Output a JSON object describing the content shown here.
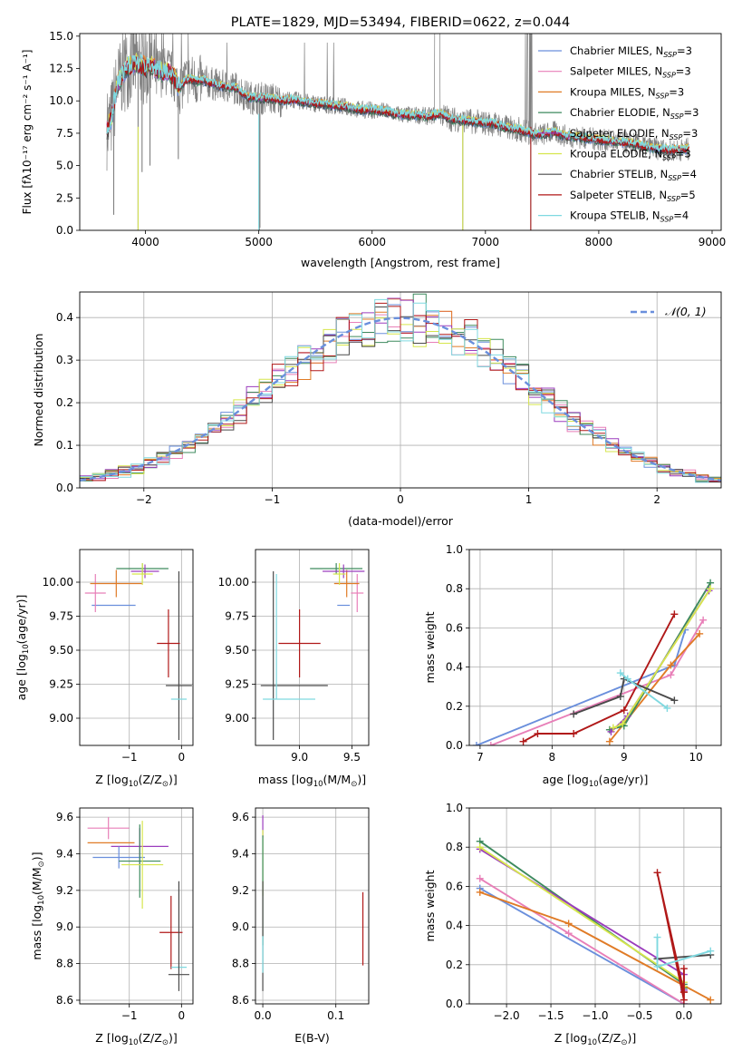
{
  "colors": {
    "chabrier_miles": "#6a8fdc",
    "salpeter_miles": "#e87fb8",
    "kroupa_miles": "#e07b26",
    "chabrier_elodie": "#3d8a5e",
    "salpeter_elodie": "#9b3dbd",
    "kroupa_elodie": "#d6e64c",
    "chabrier_stelib": "#4a4a4a",
    "salpeter_stelib": "#b01818",
    "kroupa_stelib": "#7fd9e0",
    "data": "#808080"
  },
  "chart_data": [
    {
      "id": "spectrum",
      "type": "line",
      "title": "PLATE=1829, MJD=53494, FIBERID=0622, z=0.044",
      "xlabel": "wavelength [Angstrom, rest frame]",
      "ylabel": "Flux [fλ10⁻¹⁷ erg cm⁻² s⁻¹ A⁻¹]",
      "xlim": [
        3420,
        9080
      ],
      "ylim": [
        0,
        15.2
      ],
      "xticks": [
        4000,
        5000,
        6000,
        7000,
        8000,
        9000
      ],
      "yticks": [
        0.0,
        2.5,
        5.0,
        7.5,
        10.0,
        12.5,
        15.0
      ],
      "ytick_labels": [
        "0.0",
        "2.5",
        "5.0",
        "7.5",
        "10.0",
        "12.5",
        "15.0"
      ],
      "legend_position": "upper-right",
      "legend": [
        {
          "prefix": "Chabrier MILES, N",
          "sub": "SSP",
          "suffix": "=3",
          "color": "#6a8fdc"
        },
        {
          "prefix": "Salpeter MILES, N",
          "sub": "SSP",
          "suffix": "=3",
          "color": "#e87fb8"
        },
        {
          "prefix": "Kroupa MILES, N",
          "sub": "SSP",
          "suffix": "=3",
          "color": "#e07b26"
        },
        {
          "prefix": "Chabrier ELODIE, N",
          "sub": "SSP",
          "suffix": "=3",
          "color": "#3d8a5e"
        },
        {
          "prefix": "Salpeter ELODIE, N",
          "sub": "SSP",
          "suffix": "=3",
          "color": "#9b3dbd"
        },
        {
          "prefix": "Kroupa ELODIE, N",
          "sub": "SSP",
          "suffix": "=3",
          "color": "#d6e64c"
        },
        {
          "prefix": "Chabrier STELIB, N",
          "sub": "SSP",
          "suffix": "=4",
          "color": "#4a4a4a"
        },
        {
          "prefix": "Salpeter STELIB, N",
          "sub": "SSP",
          "suffix": "=5",
          "color": "#b01818"
        },
        {
          "prefix": "Kroupa STELIB, N",
          "sub": "SSP",
          "suffix": "=4",
          "color": "#7fd9e0"
        }
      ],
      "data_series": {
        "x": [
          3660,
          3700,
          3750,
          3800,
          3850,
          3900,
          3950,
          4000,
          4050,
          4100,
          4150,
          4200,
          4250,
          4300,
          4350,
          4400,
          4450,
          4500,
          4600,
          4700,
          4800,
          4900,
          5000,
          5100,
          5200,
          5300,
          5400,
          5500,
          5600,
          5700,
          5800,
          5900,
          6000,
          6100,
          6200,
          6300,
          6400,
          6500,
          6600,
          6700,
          6800,
          6900,
          7000,
          7100,
          7200,
          7300,
          7400,
          7500,
          7600,
          7700,
          7800,
          7900,
          8000,
          8100,
          8200,
          8300,
          8400,
          8500,
          8600,
          8700,
          8800
        ],
        "y": [
          7.8,
          8.6,
          11.2,
          12.1,
          12.6,
          12.9,
          12.8,
          12.6,
          12.7,
          12.4,
          12.2,
          12.3,
          11.8,
          10.9,
          11.6,
          11.7,
          11.5,
          11.6,
          11.3,
          11.1,
          11.0,
          10.3,
          10.2,
          10.2,
          10.0,
          10.1,
          9.9,
          9.8,
          9.7,
          9.6,
          9.5,
          9.3,
          9.3,
          9.2,
          9.0,
          8.9,
          8.9,
          8.8,
          9.0,
          8.6,
          8.5,
          8.4,
          8.3,
          8.2,
          7.9,
          7.8,
          7.5,
          7.4,
          7.6,
          7.3,
          7.2,
          7.1,
          7.0,
          6.9,
          6.8,
          6.7,
          6.5,
          6.3,
          6.2,
          6.2,
          6.3
        ]
      }
    },
    {
      "id": "residuals",
      "type": "step",
      "xlabel": "(data-model)/error",
      "ylabel": "Normed distribution",
      "xlim": [
        -2.5,
        2.5
      ],
      "ylim": [
        0.0,
        0.46
      ],
      "xticks": [
        -2,
        -1,
        0,
        1,
        2
      ],
      "xtick_labels": [
        "−2",
        "−1",
        "0",
        "1",
        "2"
      ],
      "yticks": [
        0.0,
        0.1,
        0.2,
        0.3,
        0.4
      ],
      "ytick_labels": [
        "0.0",
        "0.1",
        "0.2",
        "0.3",
        "0.4"
      ],
      "legend_label": "𝒩(0, 1)",
      "legend_position": "upper-right",
      "grid": true
    },
    {
      "id": "age_vs_Z",
      "type": "errorbar",
      "xlabel_parts": [
        "Z [log",
        "10",
        "(Z/Z",
        "⊙",
        ")]"
      ],
      "ylabel_parts": [
        "age  [log",
        "10",
        "(age/yr)]"
      ],
      "xlim": [
        -1.95,
        0.22
      ],
      "ylim": [
        8.8,
        10.24
      ],
      "xticks": [
        -1,
        0
      ],
      "xtick_labels": [
        "−1",
        "0"
      ],
      "yticks": [
        9.0,
        9.25,
        9.5,
        9.75,
        10.0
      ],
      "ytick_labels": [
        "9.00",
        "9.25",
        "9.50",
        "9.75",
        "10.00"
      ],
      "points": [
        {
          "color": "#6a8fdc",
          "x": -1.3,
          "xerr": 0.42,
          "y": 9.83,
          "yerr": 0.0
        },
        {
          "color": "#e87fb8",
          "x": -1.65,
          "xerr": 0.2,
          "y": 9.92,
          "yerr": 0.14
        },
        {
          "color": "#e07b26",
          "x": -1.25,
          "xerr": 0.5,
          "y": 9.99,
          "yerr": 0.1
        },
        {
          "color": "#3d8a5e",
          "x": -0.75,
          "xerr": 0.5,
          "y": 10.1,
          "yerr": 0.04
        },
        {
          "color": "#9b3dbd",
          "x": -0.7,
          "xerr": 0.27,
          "y": 10.08,
          "yerr": 0.05
        },
        {
          "color": "#d6e64c",
          "x": -0.75,
          "xerr": 0.2,
          "y": 10.06,
          "yerr": 0.08
        },
        {
          "color": "#4a4a4a",
          "x": -0.05,
          "xerr": 0.25,
          "y": 9.24,
          "yerr": 0.0
        },
        {
          "color": "#4a4a4a",
          "x": -0.05,
          "xerr": 0.0,
          "y": 9.46,
          "yerr": 0.62
        },
        {
          "color": "#b01818",
          "x": -0.25,
          "xerr": 0.22,
          "y": 9.55,
          "yerr": 0.25
        },
        {
          "color": "#7fd9e0",
          "x": -0.05,
          "xerr": 0.15,
          "y": 9.14,
          "yerr": 0.0
        }
      ]
    },
    {
      "id": "age_vs_mass",
      "type": "errorbar",
      "xlabel_parts": [
        "mass [log",
        "10",
        "(M/M",
        "⊙",
        ")]"
      ],
      "ylabel_parts": [],
      "xlim": [
        8.58,
        9.66
      ],
      "ylim": [
        8.8,
        10.24
      ],
      "xticks": [
        9.0,
        9.5
      ],
      "xtick_labels": [
        "9.0",
        "9.5"
      ],
      "yticks": [
        9.0,
        9.25,
        9.5,
        9.75,
        10.0
      ],
      "ytick_labels": [
        "9.00",
        "9.25",
        "9.50",
        "9.75",
        "10.00"
      ],
      "points": [
        {
          "color": "#6a8fdc",
          "x": 9.42,
          "xerr": 0.06,
          "y": 9.83,
          "yerr": 0.0
        },
        {
          "color": "#e87fb8",
          "x": 9.55,
          "xerr": 0.06,
          "y": 9.92,
          "yerr": 0.14
        },
        {
          "color": "#e07b26",
          "x": 9.45,
          "xerr": 0.12,
          "y": 9.99,
          "yerr": 0.1
        },
        {
          "color": "#3d8a5e",
          "x": 9.35,
          "xerr": 0.25,
          "y": 10.1,
          "yerr": 0.04
        },
        {
          "color": "#9b3dbd",
          "x": 9.42,
          "xerr": 0.2,
          "y": 10.08,
          "yerr": 0.05
        },
        {
          "color": "#d6e64c",
          "x": 9.38,
          "xerr": 0.06,
          "y": 10.06,
          "yerr": 0.08
        },
        {
          "color": "#4a4a4a",
          "x": 8.95,
          "xerr": 0.32,
          "y": 9.24,
          "yerr": 0.0
        },
        {
          "color": "#4a4a4a",
          "x": 8.75,
          "xerr": 0.0,
          "y": 9.46,
          "yerr": 0.62
        },
        {
          "color": "#b01818",
          "x": 9.0,
          "xerr": 0.2,
          "y": 9.55,
          "yerr": 0.25
        },
        {
          "color": "#7fd9e0",
          "x": 8.9,
          "xerr": 0.25,
          "y": 9.14,
          "yerr": 0.0
        },
        {
          "color": "#7fd9e0",
          "x": 8.78,
          "xerr": 0.0,
          "y": 9.6,
          "yerr": 0.46
        }
      ]
    },
    {
      "id": "massweight_vs_age",
      "type": "line",
      "xlabel_parts": [
        "age  [log",
        "10",
        "(age/yr)]"
      ],
      "ylabel": "mass weight",
      "xlim": [
        6.85,
        10.35
      ],
      "ylim": [
        0.0,
        1.0
      ],
      "xticks": [
        7,
        8,
        9,
        10
      ],
      "xtick_labels": [
        "7",
        "8",
        "9",
        "10"
      ],
      "yticks": [
        0.0,
        0.2,
        0.4,
        0.6,
        0.8,
        1.0
      ],
      "ytick_labels": [
        "0.0",
        "0.2",
        "0.4",
        "0.6",
        "0.8",
        "1.0"
      ],
      "grid": true,
      "series": [
        {
          "color": "#6a8fdc",
          "x": [
            6.95,
            9.7,
            9.85
          ],
          "y": [
            0.0,
            0.41,
            0.59
          ]
        },
        {
          "color": "#e87fb8",
          "x": [
            7.15,
            9.65,
            10.1
          ],
          "y": [
            0.0,
            0.36,
            0.64
          ]
        },
        {
          "color": "#e07b26",
          "x": [
            8.8,
            9.65,
            10.05
          ],
          "y": [
            0.02,
            0.41,
            0.57
          ]
        },
        {
          "color": "#3d8a5e",
          "x": [
            8.8,
            9.0,
            10.2
          ],
          "y": [
            0.08,
            0.1,
            0.83
          ]
        },
        {
          "color": "#9b3dbd",
          "x": [
            8.82,
            9.05,
            10.18
          ],
          "y": [
            0.07,
            0.15,
            0.79
          ]
        },
        {
          "color": "#d6e64c",
          "x": [
            8.85,
            8.98,
            10.2
          ],
          "y": [
            0.09,
            0.11,
            0.8
          ]
        },
        {
          "color": "#4a4a4a",
          "x": [
            8.3,
            8.95,
            9.0,
            9.7
          ],
          "y": [
            0.16,
            0.25,
            0.34,
            0.23
          ]
        },
        {
          "color": "#b01818",
          "x": [
            7.6,
            7.8,
            8.3,
            9.0,
            9.7
          ],
          "y": [
            0.02,
            0.06,
            0.06,
            0.18,
            0.67
          ]
        },
        {
          "color": "#7fd9e0",
          "x": [
            8.95,
            9.05,
            9.6
          ],
          "y": [
            0.37,
            0.34,
            0.19
          ]
        }
      ]
    },
    {
      "id": "mass_vs_Z",
      "type": "errorbar",
      "xlabel_parts": [
        "Z [log",
        "10",
        "(Z/Z",
        "⊙",
        ")]"
      ],
      "ylabel_parts": [
        "mass [log",
        "10",
        "(M/M",
        "⊙",
        ")]"
      ],
      "xlim": [
        -1.95,
        0.22
      ],
      "ylim": [
        8.58,
        9.65
      ],
      "xticks": [
        -1,
        0
      ],
      "xtick_labels": [
        "−1",
        "0"
      ],
      "yticks": [
        8.6,
        8.8,
        9.0,
        9.2,
        9.4,
        9.6
      ],
      "ytick_labels": [
        "8.6",
        "8.8",
        "9.0",
        "9.2",
        "9.4",
        "9.6"
      ],
      "points": [
        {
          "color": "#e87fb8",
          "x": -1.4,
          "xerr": 0.4,
          "y": 9.54,
          "yerr": 0.06
        },
        {
          "color": "#e07b26",
          "x": -1.35,
          "xerr": 0.45,
          "y": 9.46,
          "yerr": 0.0
        },
        {
          "color": "#9b3dbd",
          "x": -0.8,
          "xerr": 0.55,
          "y": 9.44,
          "yerr": 0.1
        },
        {
          "color": "#6a8fdc",
          "x": -1.2,
          "xerr": 0.5,
          "y": 9.38,
          "yerr": 0.06
        },
        {
          "color": "#3d8a5e",
          "x": -0.8,
          "xerr": 0.4,
          "y": 9.36,
          "yerr": 0.2
        },
        {
          "color": "#d6e64c",
          "x": -0.75,
          "xerr": 0.4,
          "y": 9.34,
          "yerr": 0.24
        },
        {
          "color": "#b01818",
          "x": -0.2,
          "xerr": 0.22,
          "y": 8.97,
          "yerr": 0.2
        },
        {
          "color": "#7fd9e0",
          "x": -0.05,
          "xerr": 0.15,
          "y": 8.78,
          "yerr": 0.0
        },
        {
          "color": "#4a4a4a",
          "x": -0.05,
          "xerr": 0.2,
          "y": 8.74,
          "yerr": 0.0
        },
        {
          "color": "#4a4a4a",
          "x": -0.05,
          "xerr": 0.0,
          "y": 8.95,
          "yerr": 0.3
        }
      ]
    },
    {
      "id": "mass_vs_ebv",
      "type": "errorbar",
      "xlabel": "E(B-V)",
      "ylabel_parts": [],
      "xlim": [
        -0.01,
        0.145
      ],
      "ylim": [
        8.58,
        9.65
      ],
      "xticks": [
        0.0,
        0.1
      ],
      "xtick_labels": [
        "0.0",
        "0.1"
      ],
      "yticks": [
        8.6,
        8.8,
        9.0,
        9.2,
        9.4,
        9.6
      ],
      "ytick_labels": [
        "8.6",
        "8.8",
        "9.0",
        "9.2",
        "9.4",
        "9.6"
      ],
      "points": [
        {
          "color": "#9b3dbd",
          "x": 0.0,
          "xerr": 0.0,
          "y": 9.55,
          "yerr": 0.06
        },
        {
          "color": "#d6e64c",
          "x": 0.0,
          "xerr": 0.0,
          "y": 9.35,
          "yerr": 0.18
        },
        {
          "color": "#3d8a5e",
          "x": 0.0,
          "xerr": 0.0,
          "y": 9.2,
          "yerr": 0.3
        },
        {
          "color": "#4a4a4a",
          "x": 0.0,
          "xerr": 0.0,
          "y": 8.95,
          "yerr": 0.3
        },
        {
          "color": "#7fd9e0",
          "x": 0.0,
          "xerr": 0.0,
          "y": 8.85,
          "yerr": 0.1
        },
        {
          "color": "#b01818",
          "x": 0.137,
          "xerr": 0.0,
          "y": 8.99,
          "yerr": 0.2
        }
      ]
    },
    {
      "id": "massweight_vs_Z",
      "type": "line",
      "xlabel_parts": [
        "Z [log",
        "10",
        "(Z/Z",
        "⊙",
        ")]"
      ],
      "ylabel": "mass weight",
      "xlim": [
        -2.42,
        0.42
      ],
      "ylim": [
        0.0,
        1.0
      ],
      "xticks": [
        -2.0,
        -1.5,
        -1.0,
        -0.5,
        0.0
      ],
      "xtick_labels": [
        "−2.0",
        "−1.5",
        "−1.0",
        "−0.5",
        "0.0"
      ],
      "yticks": [
        0.0,
        0.2,
        0.4,
        0.6,
        0.8,
        1.0
      ],
      "ytick_labels": [
        "0.0",
        "0.2",
        "0.4",
        "0.6",
        "0.8",
        "1.0"
      ],
      "grid": true,
      "series": [
        {
          "color": "#6a8fdc",
          "x": [
            -2.3,
            0.0
          ],
          "y": [
            0.59,
            0.0
          ]
        },
        {
          "color": "#e87fb8",
          "x": [
            -2.3,
            -1.3,
            0.0
          ],
          "y": [
            0.64,
            0.36,
            0.0
          ]
        },
        {
          "color": "#e07b26",
          "x": [
            -2.3,
            -1.3,
            0.3
          ],
          "y": [
            0.57,
            0.41,
            0.02
          ]
        },
        {
          "color": "#3d8a5e",
          "x": [
            -2.3,
            0.0,
            0.0
          ],
          "y": [
            0.83,
            0.1,
            0.08
          ]
        },
        {
          "color": "#9b3dbd",
          "x": [
            -2.3,
            0.0,
            0.0
          ],
          "y": [
            0.79,
            0.15,
            0.07
          ]
        },
        {
          "color": "#d6e64c",
          "x": [
            -2.3,
            0.0,
            0.0
          ],
          "y": [
            0.8,
            0.11,
            0.09
          ]
        },
        {
          "color": "#4a4a4a",
          "x": [
            -0.3,
            0.3
          ],
          "y": [
            0.23,
            0.25
          ]
        },
        {
          "color": "#b01818",
          "x": [
            0.0,
            -0.3,
            0.0,
            0.0,
            0.0
          ],
          "y": [
            0.06,
            0.67,
            0.02,
            0.18,
            0.06
          ]
        },
        {
          "color": "#7fd9e0",
          "x": [
            -0.3,
            -0.3,
            0.3
          ],
          "y": [
            0.34,
            0.19,
            0.27
          ]
        }
      ]
    }
  ]
}
